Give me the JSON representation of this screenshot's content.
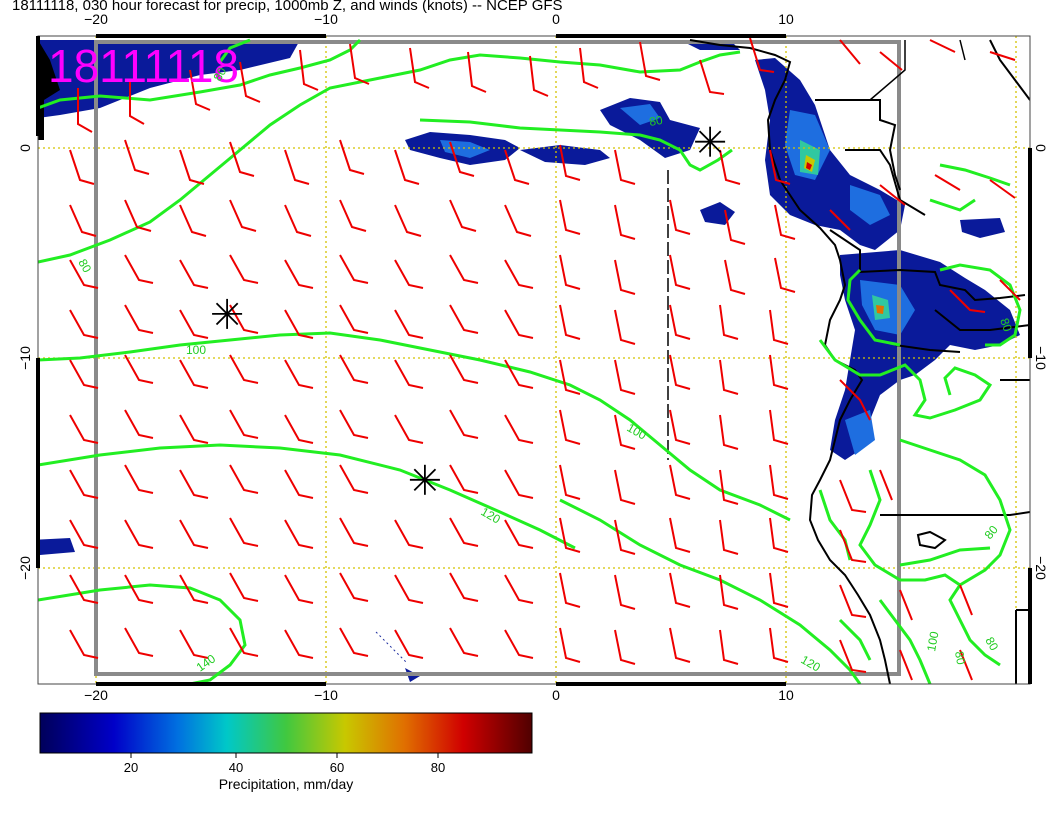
{
  "header": {
    "title": "18111118, 030 hour forecast for precip, 1000mb Z, and winds (knots) -- NCEP GFS"
  },
  "map": {
    "date_stamp": "18111118",
    "top_longitude_labels": [
      "−20",
      "−10",
      "0",
      "10"
    ],
    "bottom_longitude_labels": [
      "−20",
      "−10",
      "0",
      "10"
    ],
    "left_latitude_labels": [
      "0",
      "−10",
      "−20"
    ],
    "right_latitude_labels": [
      "0",
      "−10",
      "−20"
    ],
    "contour_labels": [
      "80",
      "100",
      "100",
      "120",
      "120",
      "140",
      "80",
      "80",
      "100",
      "80",
      "80",
      "80"
    ],
    "colors": {
      "contour": "#22ee22",
      "wind_barb": "#ee0000",
      "gridline": "#d4c400",
      "date_stamp": "#ff00ff",
      "precip_low": "#00008b",
      "precip_high": "#5a0000"
    },
    "markers": [
      {
        "name": "center-west",
        "lon": -14.3,
        "lat": -7.9
      },
      {
        "name": "center-south",
        "lon": -5.7,
        "lat": -15.8
      },
      {
        "name": "center-north",
        "lon": 6.7,
        "lat": 0.3
      }
    ]
  },
  "colorbar": {
    "ticks": [
      "20",
      "40",
      "60",
      "80"
    ],
    "label": "Precipitation, mm/day"
  }
}
